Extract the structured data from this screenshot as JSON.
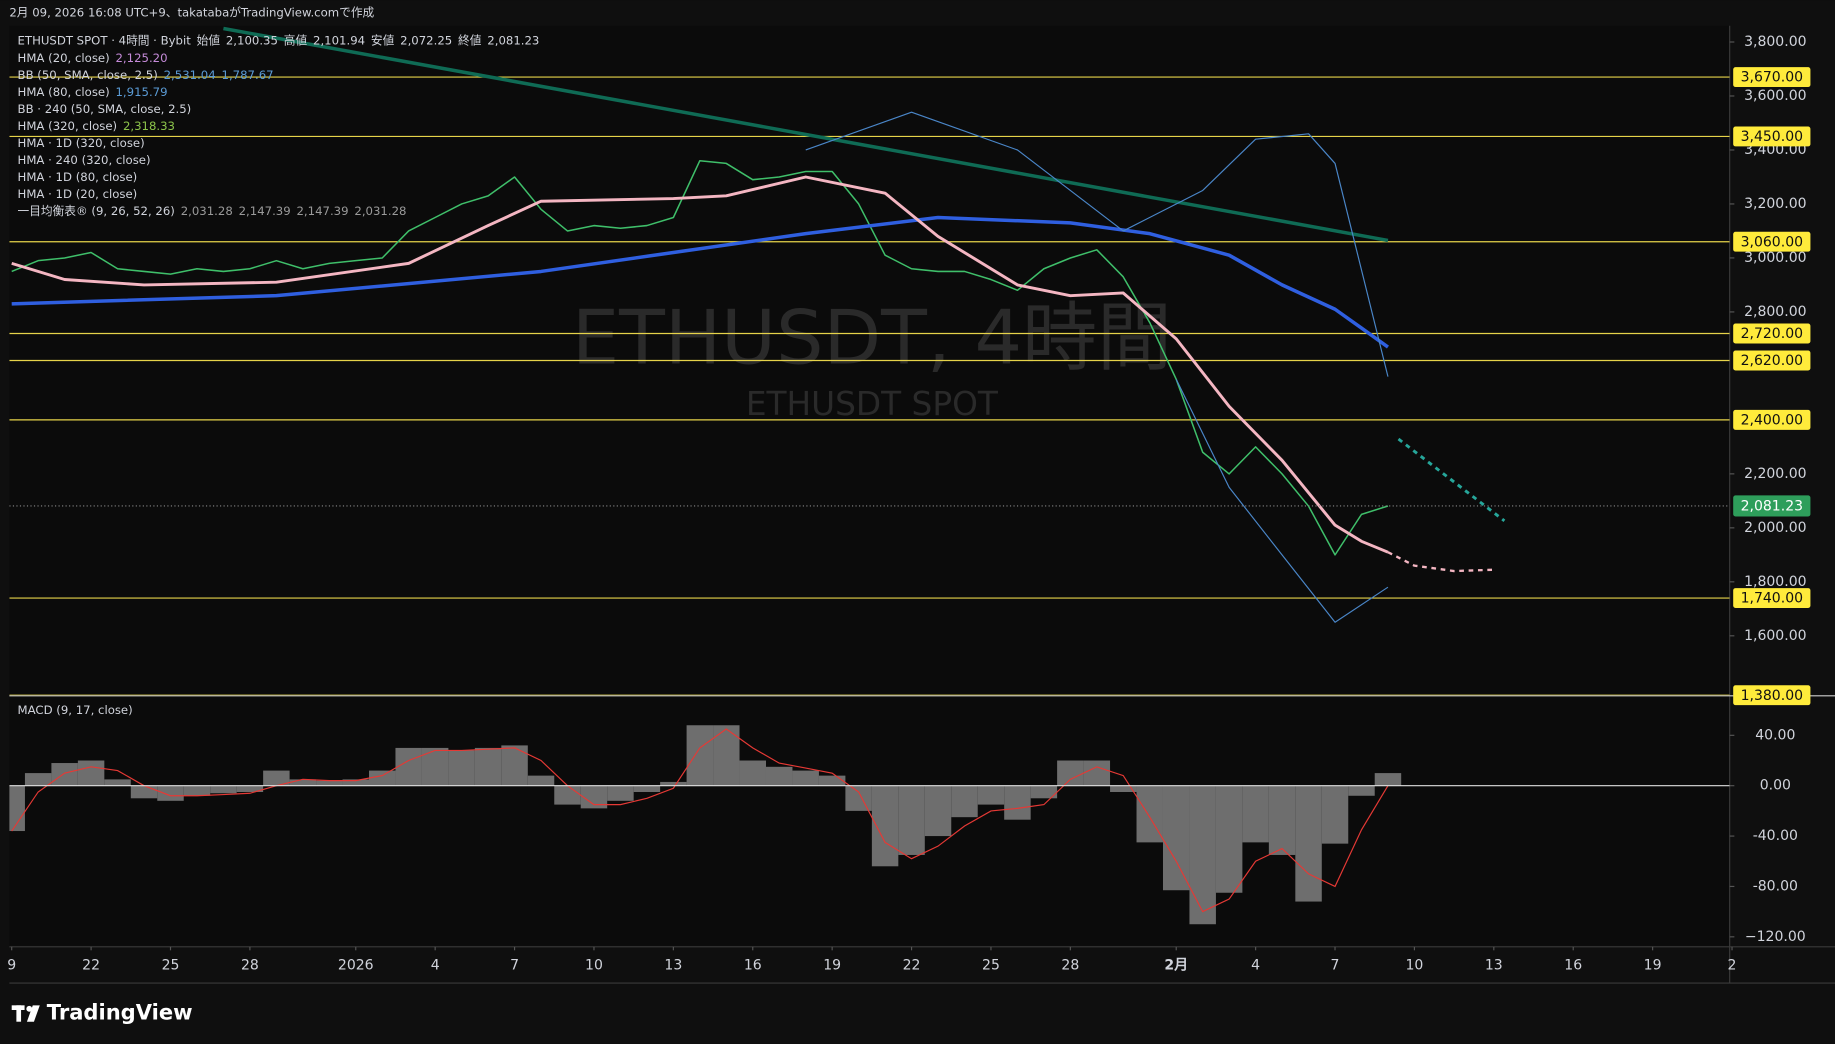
{
  "header": {
    "text": "2月 09, 2026 16:08 UTC+9、takatabaがTradingView.comで作成"
  },
  "footer": {
    "logo": "TradingView"
  },
  "chart_data": {
    "type": "line",
    "title": "ETHUSDT, 4時間",
    "subtitle": "ETHUSDT SPOT",
    "symbol": "ETHUSDT SPOT · 4時間 · Bybit",
    "ohlc": [
      {
        "label": "始値",
        "value": "2,100.35"
      },
      {
        "label": "高値",
        "value": "2,101.94"
      },
      {
        "label": "安値",
        "value": "2,072.25"
      },
      {
        "label": "終値",
        "value": "2,081.23"
      }
    ],
    "indicators": [
      {
        "text": "HMA (20, close)",
        "values": [
          "2,125.20"
        ],
        "color": "#c58bd9"
      },
      {
        "text": "BB (50, SMA, close, 2.5)",
        "values": [
          "2,531.04",
          "1,787.67"
        ],
        "color": "#5b9bd5"
      },
      {
        "text": "HMA (80, close)",
        "values": [
          "1,915.79"
        ],
        "color": "#5b9bd5"
      },
      {
        "text": "BB · 240 (50, SMA, close, 2.5)",
        "values": [],
        "color": "#5b9bd5"
      },
      {
        "text": "HMA (320, close)",
        "values": [
          "2,318.33"
        ],
        "color": "#8bc34a"
      },
      {
        "text": "HMA · 1D (320, close)",
        "values": [],
        "color": "#8bc34a"
      },
      {
        "text": "HMA · 240 (320, close)",
        "values": [],
        "color": "#8bc34a"
      },
      {
        "text": "HMA · 1D (80, close)",
        "values": [],
        "color": "#8bc34a"
      },
      {
        "text": "HMA · 1D (20, close)",
        "values": [],
        "color": "#8bc34a"
      },
      {
        "text": "一目均衡表® (9, 26, 52, 26)",
        "values": [
          "2,031.28",
          "2,147.39",
          "2,147.39",
          "2,031.28"
        ],
        "color": "#9a9a9a"
      }
    ],
    "xlim": [
      0,
      65
    ],
    "xticks": [
      {
        "value": 0,
        "label": "9"
      },
      {
        "value": 3,
        "label": "22"
      },
      {
        "value": 6,
        "label": "25"
      },
      {
        "value": 9,
        "label": "28"
      },
      {
        "value": 13,
        "label": "2026"
      },
      {
        "value": 16,
        "label": "4"
      },
      {
        "value": 19,
        "label": "7"
      },
      {
        "value": 22,
        "label": "10"
      },
      {
        "value": 25,
        "label": "13"
      },
      {
        "value": 28,
        "label": "16"
      },
      {
        "value": 31,
        "label": "19"
      },
      {
        "value": 34,
        "label": "22"
      },
      {
        "value": 37,
        "label": "25"
      },
      {
        "value": 40,
        "label": "28"
      },
      {
        "value": 44,
        "label": "2月"
      },
      {
        "value": 47,
        "label": "4"
      },
      {
        "value": 50,
        "label": "7"
      },
      {
        "value": 53,
        "label": "10"
      },
      {
        "value": 56,
        "label": "13"
      },
      {
        "value": 59,
        "label": "16"
      },
      {
        "value": 62,
        "label": "19"
      },
      {
        "value": 65,
        "label": "2"
      }
    ],
    "ylim": [
      1380,
      3860
    ],
    "yticks": [
      {
        "value": 3800,
        "label": "3,800.00"
      },
      {
        "value": 3600,
        "label": "3,600.00"
      },
      {
        "value": 3400,
        "label": "3,400.00"
      },
      {
        "value": 3200,
        "label": "3,200.00"
      },
      {
        "value": 3000,
        "label": "3,000.00"
      },
      {
        "value": 2800,
        "label": "2,800.00"
      },
      {
        "value": 2200,
        "label": "2,200.00"
      },
      {
        "value": 2000,
        "label": "2,000.00"
      },
      {
        "value": 1800,
        "label": "1,800.00"
      },
      {
        "value": 1600,
        "label": "1,600.00"
      }
    ],
    "levels": [
      {
        "value": 3670,
        "label": "3,670.00"
      },
      {
        "value": 3450,
        "label": "3,450.00"
      },
      {
        "value": 3060,
        "label": "3,060.00"
      },
      {
        "value": 2720,
        "label": "2,720.00"
      },
      {
        "value": 2620,
        "label": "2,620.00"
      },
      {
        "value": 2400,
        "label": "2,400.00"
      },
      {
        "value": 1740,
        "label": "1,740.00"
      },
      {
        "value": 1380,
        "label": "1,380.00"
      }
    ],
    "level_color": "#e6d34a",
    "last": {
      "value": 2081.23,
      "label": "2,081.23",
      "color": "#2e9e5b"
    },
    "series": [
      {
        "x": [
          0,
          1,
          2,
          3,
          4,
          5,
          6,
          7,
          8,
          9,
          10,
          11,
          12,
          13,
          14,
          15,
          16,
          17,
          18,
          19,
          20,
          21,
          22,
          23,
          24,
          25,
          26,
          27,
          28,
          29,
          30,
          31,
          32,
          33,
          34,
          35,
          36,
          37,
          38,
          39,
          40,
          41,
          42,
          43,
          44,
          45,
          46,
          47,
          48,
          49,
          50,
          51,
          52
        ],
        "values": [
          2950,
          2990,
          3000,
          3020,
          2960,
          2950,
          2940,
          2960,
          2950,
          2960,
          2990,
          2960,
          2980,
          2990,
          3000,
          3100,
          3150,
          3200,
          3230,
          3300,
          3180,
          3100,
          3120,
          3110,
          3120,
          3150,
          3360,
          3350,
          3290,
          3300,
          3320,
          3320,
          3200,
          3010,
          2960,
          2950,
          2950,
          2920,
          2880,
          2960,
          3000,
          3030,
          2930,
          2760,
          2550,
          2280,
          2200,
          2300,
          2200,
          2080,
          1900,
          2050,
          2081.23
        ],
        "color": "#3fbf6a",
        "width": 1.3,
        "dash": false
      },
      {
        "x": [
          8,
          52
        ],
        "values": [
          3850,
          3065
        ],
        "color": "#0f6b55",
        "width": 3,
        "dash": false
      },
      {
        "x": [
          0,
          10,
          20,
          25,
          30,
          35,
          40,
          43,
          46,
          48,
          50,
          51,
          52
        ],
        "values": [
          2830,
          2860,
          2950,
          3020,
          3090,
          3150,
          3130,
          3090,
          3010,
          2900,
          2810,
          2740,
          2670
        ],
        "color": "#2f5fe0",
        "width": 3,
        "dash": false
      },
      {
        "x": [
          0,
          2,
          5,
          10,
          15,
          18,
          20,
          25,
          27,
          30,
          33,
          35,
          38,
          40,
          42,
          44,
          46,
          48,
          50,
          51,
          52
        ],
        "values": [
          2980,
          2920,
          2900,
          2910,
          2980,
          3120,
          3210,
          3220,
          3230,
          3300,
          3240,
          3080,
          2900,
          2860,
          2870,
          2700,
          2450,
          2250,
          2010,
          1950,
          1910
        ],
        "color": "#f4b6c2",
        "width": 2.5,
        "dash": false
      },
      {
        "x": [
          52,
          53,
          54.5,
          56
        ],
        "values": [
          1910,
          1860,
          1840,
          1845
        ],
        "color": "#f4b6c2",
        "width": 2,
        "dash": true
      },
      {
        "x": [
          52.4,
          56.4
        ],
        "values": [
          2329,
          2026
        ],
        "color": "#26a69a",
        "width": 2.5,
        "dash": true
      },
      {
        "x": [
          30,
          34,
          38,
          42,
          45,
          47,
          49,
          50,
          52
        ],
        "values": [
          3400,
          3540,
          3400,
          3100,
          3250,
          3440,
          3460,
          3350,
          2560
        ],
        "color": "#4a86c8",
        "width": 1,
        "dash": false
      },
      {
        "x": [
          44,
          46,
          48,
          50,
          52
        ],
        "values": [
          2550,
          2150,
          1900,
          1650,
          1780
        ],
        "color": "#4a86c8",
        "width": 1,
        "dash": false
      }
    ],
    "macd": {
      "title": "MACD (9, 17, close)",
      "ylim": [
        -127,
        70
      ],
      "yticks": [
        {
          "value": 40,
          "label": "40.00"
        },
        {
          "value": 0,
          "label": "0.00"
        },
        {
          "value": -40,
          "label": "-40.00"
        },
        {
          "value": -80,
          "label": "-80.00"
        },
        {
          "value": -120,
          "label": "−120.00"
        }
      ],
      "histogram": {
        "values": [
          -36,
          10,
          18,
          20,
          5,
          -10,
          -12,
          -8,
          -6,
          -5,
          12,
          5,
          4,
          5,
          12,
          30,
          30,
          28,
          30,
          32,
          8,
          -15,
          -18,
          -12,
          -5,
          3,
          48,
          48,
          20,
          15,
          12,
          8,
          -20,
          -64,
          -55,
          -40,
          -25,
          -15,
          -27,
          -10,
          20,
          20,
          -5,
          -45,
          -83,
          -110,
          -85,
          -45,
          -55,
          -92,
          -46,
          -8,
          10
        ],
        "color": "#6e6e6e"
      },
      "signal": {
        "values": [
          -36,
          -5,
          10,
          15,
          12,
          0,
          -8,
          -8,
          -7,
          -6,
          0,
          5,
          4,
          4,
          8,
          20,
          28,
          28,
          29,
          30,
          20,
          0,
          -15,
          -15,
          -10,
          -2,
          30,
          45,
          30,
          18,
          14,
          10,
          -5,
          -45,
          -58,
          -48,
          -32,
          -20,
          -18,
          -15,
          5,
          15,
          8,
          -25,
          -60,
          -100,
          -90,
          -60,
          -50,
          -70,
          -80,
          -35,
          0
        ],
        "color": "#e53935"
      }
    }
  }
}
